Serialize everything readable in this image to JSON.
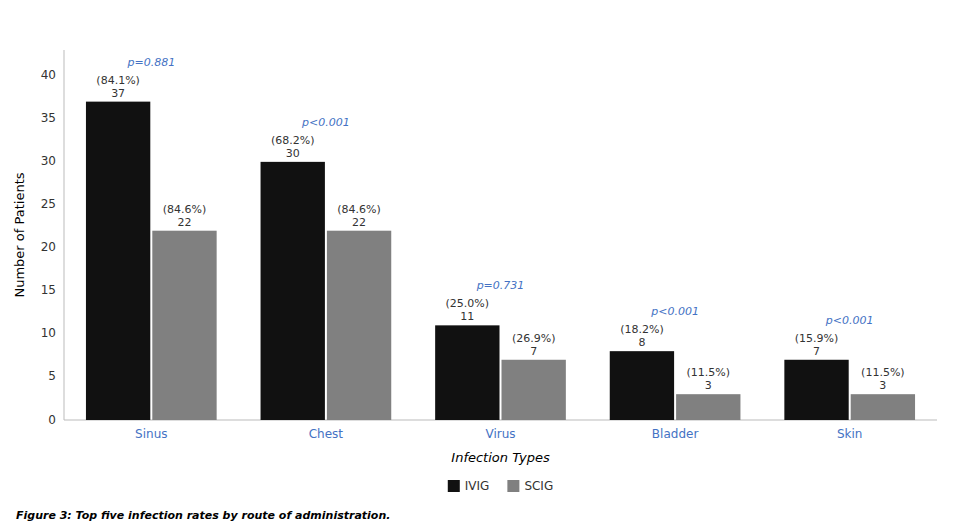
{
  "chart_data": {
    "type": "bar",
    "categories": [
      "Sinus",
      "Chest",
      "Virus",
      "Bladder",
      "Skin"
    ],
    "series": [
      {
        "name": "IVIG",
        "color": "#111111",
        "values": [
          37,
          30,
          11,
          8,
          7
        ],
        "share_labels": [
          "(84.1%)",
          "(68.2%)",
          "(25.0%)",
          "(18.2%)",
          "(15.9%)"
        ]
      },
      {
        "name": "SCIG",
        "color": "#808080",
        "values": [
          22,
          22,
          7,
          3,
          3
        ],
        "share_labels": [
          "(84.6%)",
          "(84.6%)",
          "(26.9%)",
          "(11.5%)",
          "(11.5%)"
        ]
      }
    ],
    "p_values": [
      "p=0.881",
      "p<0.001",
      "p=0.731",
      "p<0.001",
      "p<0.001"
    ],
    "x_label": "Infection Types",
    "y_label": "Number of Patients",
    "caption": "Figure 3: Top five infection rates by route of administration.",
    "ylim": [
      0,
      43
    ],
    "yticks": [
      0,
      5,
      10,
      15,
      20,
      25,
      30,
      35,
      40
    ],
    "grid": false,
    "legend": "bottom",
    "data_labels": true
  }
}
